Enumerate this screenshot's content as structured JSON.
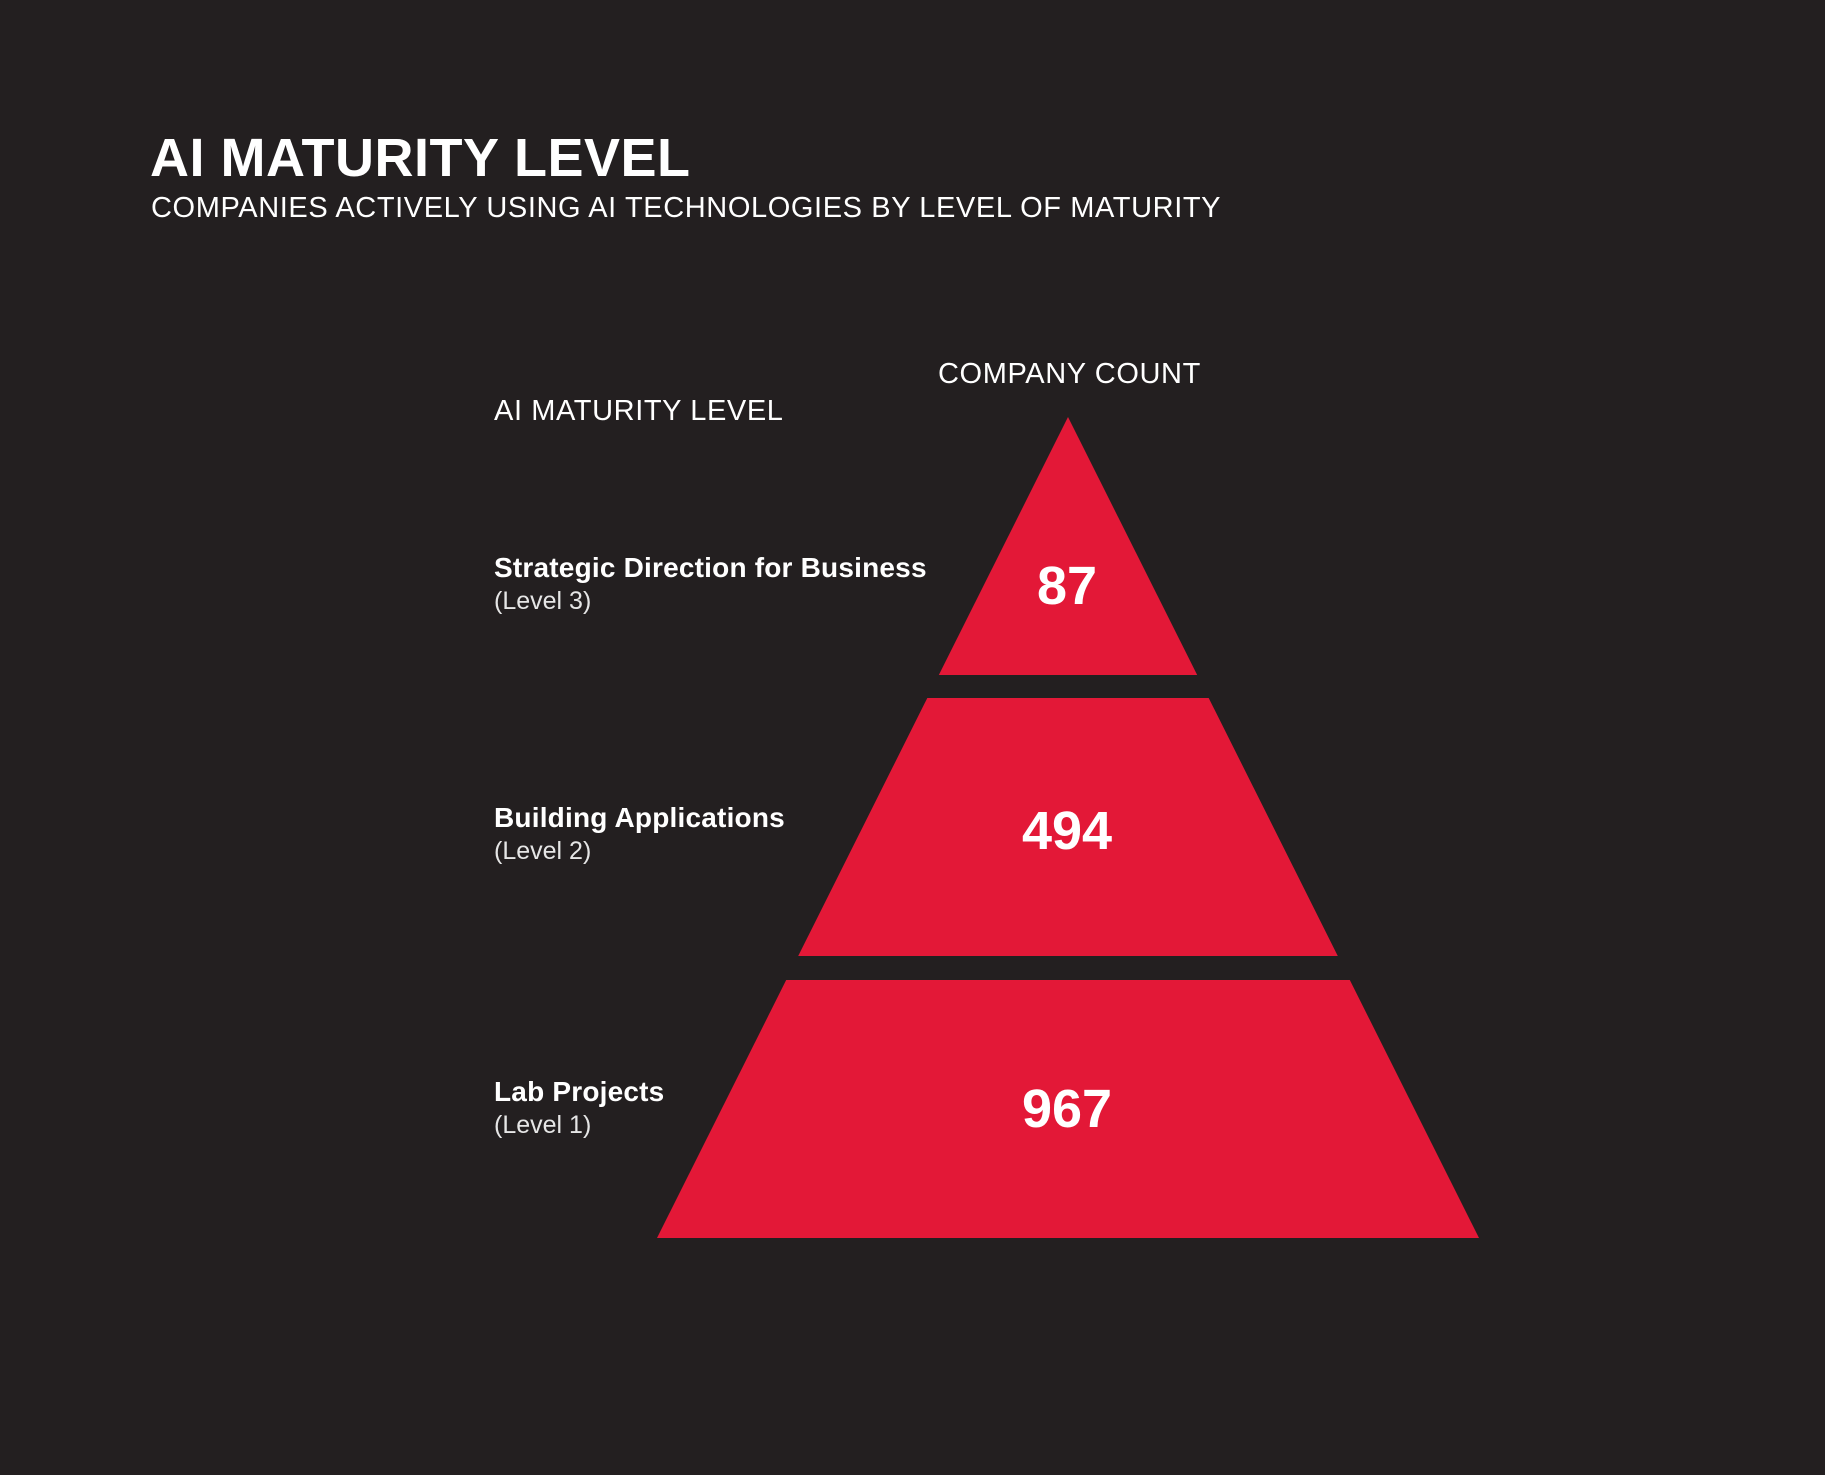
{
  "title": "AI MATURITY LEVEL",
  "subtitle": "COMPANIES ACTIVELY USING AI TECHNOLOGIES BY LEVEL OF MATURITY",
  "left_header": "AI MATURITY LEVEL",
  "right_header": "COMPANY COUNT",
  "colors": {
    "background": "#231f20",
    "segment": "#e31837",
    "text": "#ffffff"
  },
  "chart_data": {
    "type": "funnel",
    "title": "AI MATURITY LEVEL",
    "subtitle": "COMPANIES ACTIVELY USING AI TECHNOLOGIES BY LEVEL OF MATURITY",
    "categories": [
      "Strategic Direction for Business",
      "Building Applications",
      "Lab Projects"
    ],
    "category_sublabels": [
      "(Level 3)",
      "(Level 2)",
      "(Level 1)"
    ],
    "values": [
      87,
      494,
      967
    ],
    "value_header": "COMPANY COUNT",
    "category_header": "AI MATURITY LEVEL",
    "order": "top-to-bottom"
  }
}
